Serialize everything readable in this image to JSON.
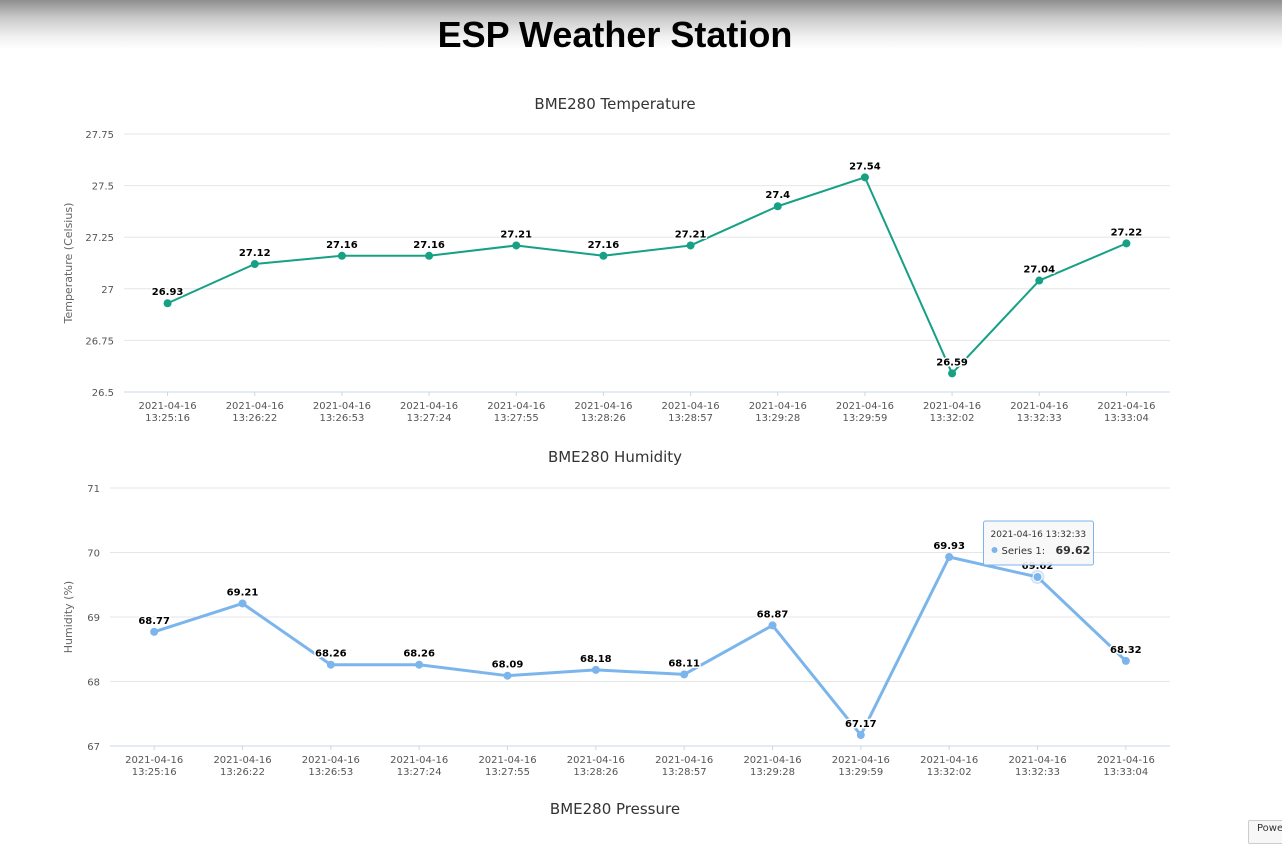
{
  "page": {
    "title": "ESP Weather Station"
  },
  "chart_data": [
    {
      "type": "line",
      "title": "BME280 Temperature",
      "ylabel": "Temperature (Celsius)",
      "ylim": [
        26.5,
        27.75
      ],
      "yticks": [
        "26.5",
        "26.75",
        "27",
        "27.25",
        "27.5",
        "27.75"
      ],
      "categories": [
        {
          "date": "2021-04-16",
          "time": "13:25:16"
        },
        {
          "date": "2021-04-16",
          "time": "13:26:22"
        },
        {
          "date": "2021-04-16",
          "time": "13:26:53"
        },
        {
          "date": "2021-04-16",
          "time": "13:27:24"
        },
        {
          "date": "2021-04-16",
          "time": "13:27:55"
        },
        {
          "date": "2021-04-16",
          "time": "13:28:26"
        },
        {
          "date": "2021-04-16",
          "time": "13:28:57"
        },
        {
          "date": "2021-04-16",
          "time": "13:29:28"
        },
        {
          "date": "2021-04-16",
          "time": "13:29:59"
        },
        {
          "date": "2021-04-16",
          "time": "13:32:02"
        },
        {
          "date": "2021-04-16",
          "time": "13:32:33"
        },
        {
          "date": "2021-04-16",
          "time": "13:33:04"
        }
      ],
      "values": [
        26.93,
        27.12,
        27.16,
        27.16,
        27.21,
        27.16,
        27.21,
        27.4,
        27.54,
        26.59,
        27.04,
        27.22
      ],
      "labels": [
        "26.93",
        "27.12",
        "27.16",
        "27.16",
        "27.21",
        "27.16",
        "27.21",
        "27.4",
        "27.54",
        "26.59",
        "27.04",
        "27.22"
      ],
      "color": "#16a085",
      "grid": true,
      "legend": "none"
    },
    {
      "type": "line",
      "title": "BME280 Humidity",
      "ylabel": "Humidity (%)",
      "ylim": [
        67,
        71
      ],
      "yticks": [
        "67",
        "68",
        "69",
        "70",
        "71"
      ],
      "categories": [
        {
          "date": "2021-04-16",
          "time": "13:25:16"
        },
        {
          "date": "2021-04-16",
          "time": "13:26:22"
        },
        {
          "date": "2021-04-16",
          "time": "13:26:53"
        },
        {
          "date": "2021-04-16",
          "time": "13:27:24"
        },
        {
          "date": "2021-04-16",
          "time": "13:27:55"
        },
        {
          "date": "2021-04-16",
          "time": "13:28:26"
        },
        {
          "date": "2021-04-16",
          "time": "13:28:57"
        },
        {
          "date": "2021-04-16",
          "time": "13:29:28"
        },
        {
          "date": "2021-04-16",
          "time": "13:29:59"
        },
        {
          "date": "2021-04-16",
          "time": "13:32:02"
        },
        {
          "date": "2021-04-16",
          "time": "13:32:33"
        },
        {
          "date": "2021-04-16",
          "time": "13:33:04"
        }
      ],
      "values": [
        68.77,
        69.21,
        68.26,
        68.26,
        68.09,
        68.18,
        68.11,
        68.87,
        67.17,
        69.93,
        69.62,
        68.32
      ],
      "labels": [
        "68.77",
        "69.21",
        "68.26",
        "68.26",
        "68.09",
        "68.18",
        "68.11",
        "68.87",
        "67.17",
        "69.93",
        "69.62",
        "68.32"
      ],
      "color": "#7cb5ec",
      "grid": true,
      "legend": "none",
      "tooltip": {
        "index": 10,
        "header": "2021-04-16 13:32:33",
        "series_label": "Series 1: ",
        "value": "69.62"
      }
    },
    {
      "type": "line",
      "title": "BME280 Pressure"
    }
  ],
  "footer": {
    "powered_label": "Powe"
  }
}
